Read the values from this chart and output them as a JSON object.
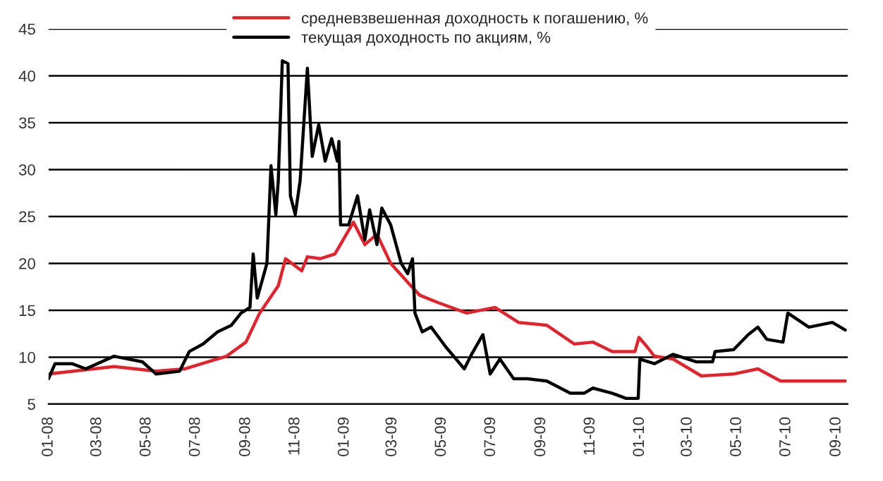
{
  "chart_data": {
    "type": "line",
    "ylim": [
      5,
      45
    ],
    "yticks": [
      5,
      10,
      15,
      20,
      25,
      30,
      35,
      40,
      45
    ],
    "xlim": [
      "2008-01-01",
      "2010-09-15"
    ],
    "xticks": [
      {
        "value": "2008-01-01",
        "label": "01-08"
      },
      {
        "value": "2008-03-01",
        "label": "03-08"
      },
      {
        "value": "2008-05-01",
        "label": "05-08"
      },
      {
        "value": "2008-07-01",
        "label": "07-08"
      },
      {
        "value": "2008-09-01",
        "label": "09-08"
      },
      {
        "value": "2008-11-01",
        "label": "11-08"
      },
      {
        "value": "2009-01-01",
        "label": "01-09"
      },
      {
        "value": "2009-03-01",
        "label": "03-09"
      },
      {
        "value": "2009-05-01",
        "label": "05-09"
      },
      {
        "value": "2009-07-01",
        "label": "07-09"
      },
      {
        "value": "2009-09-01",
        "label": "09-09"
      },
      {
        "value": "2009-11-01",
        "label": "11-09"
      },
      {
        "value": "2010-01-01",
        "label": "01-10"
      },
      {
        "value": "2010-03-01",
        "label": "03-10"
      },
      {
        "value": "2010-05-01",
        "label": "05-10"
      },
      {
        "value": "2010-07-01",
        "label": "07-10"
      },
      {
        "value": "2010-09-01",
        "label": "09-10"
      }
    ],
    "grid": "y",
    "legend": "top left",
    "marker": "none",
    "line_style": "solid",
    "series": [
      {
        "name": "средневзвешенная доходность к погашению, %",
        "color": "#e8202a",
        "x": [
          "2008-01-01",
          "2008-03-22",
          "2008-05-13",
          "2008-06-17",
          "2008-08-08",
          "2008-09-01",
          "2008-09-18",
          "2008-10-11",
          "2008-10-20",
          "2008-11-09",
          "2008-11-16",
          "2008-12-02",
          "2008-12-20",
          "2009-01-12",
          "2009-01-26",
          "2009-02-10",
          "2009-02-27",
          "2009-03-24",
          "2009-04-04",
          "2009-04-27",
          "2009-06-01",
          "2009-07-06",
          "2009-08-04",
          "2009-09-08",
          "2009-10-12",
          "2009-11-04",
          "2009-11-28",
          "2009-12-26",
          "2009-12-31",
          "2010-01-10",
          "2010-01-19",
          "2010-02-11",
          "2010-03-18",
          "2010-04-27",
          "2010-05-27",
          "2010-06-24",
          "2010-07-29",
          "2010-09-12"
        ],
        "values": [
          8.2,
          9,
          8.5,
          8.75,
          10.1,
          11.6,
          14.7,
          17.6,
          20.5,
          19.2,
          20.7,
          20.5,
          21,
          24.4,
          22,
          23.1,
          20,
          17.6,
          16.6,
          15.8,
          14.7,
          15.3,
          13.7,
          13.4,
          11.4,
          11.6,
          10.6,
          10.6,
          12.1,
          11.1,
          10.1,
          9.8,
          8,
          8.2,
          8.75,
          7.45,
          7.45,
          7.45
        ]
      },
      {
        "name": "текущая доходность по акциям, %",
        "color": "#000000",
        "x": [
          "2008-01-01",
          "2008-01-09",
          "2008-01-30",
          "2008-02-16",
          "2008-03-22",
          "2008-04-26",
          "2008-05-13",
          "2008-06-11",
          "2008-06-23",
          "2008-07-10",
          "2008-07-28",
          "2008-08-14",
          "2008-08-26",
          "2008-09-06",
          "2008-09-10",
          "2008-09-15",
          "2008-09-27",
          "2008-10-02",
          "2008-10-08",
          "2008-10-11",
          "2008-10-16",
          "2008-10-23",
          "2008-10-26",
          "2008-11-01",
          "2008-11-07",
          "2008-11-16",
          "2008-11-22",
          "2008-11-30",
          "2008-12-08",
          "2008-12-16",
          "2008-12-23",
          "2008-12-25",
          "2008-12-27",
          "2009-01-06",
          "2009-01-17",
          "2009-01-26",
          "2009-02-01",
          "2009-02-10",
          "2009-02-16",
          "2009-02-27",
          "2009-03-12",
          "2009-03-20",
          "2009-03-26",
          "2009-03-29",
          "2009-04-07",
          "2009-04-18",
          "2009-05-06",
          "2009-05-29",
          "2009-06-07",
          "2009-06-21",
          "2009-06-30",
          "2009-07-12",
          "2009-07-29",
          "2009-08-15",
          "2009-09-08",
          "2009-10-07",
          "2009-10-24",
          "2009-11-04",
          "2009-11-28",
          "2009-12-15",
          "2009-12-30",
          "2010-01-01",
          "2010-01-19",
          "2010-02-11",
          "2010-03-12",
          "2010-04-01",
          "2010-04-04",
          "2010-04-27",
          "2010-05-15",
          "2010-05-27",
          "2010-06-07",
          "2010-06-27",
          "2010-07-03",
          "2010-07-29",
          "2010-08-27",
          "2010-09-12"
        ],
        "values": [
          7.7,
          9.3,
          9.3,
          8.75,
          10.1,
          9.5,
          8.2,
          8.5,
          10.6,
          11.4,
          12.7,
          13.4,
          14.7,
          15.3,
          21,
          16.3,
          20,
          30.4,
          25.2,
          28.8,
          41.6,
          41.3,
          27.2,
          25.2,
          28.8,
          40.8,
          31.4,
          34.8,
          30.9,
          33.3,
          30.9,
          33,
          24.1,
          24.1,
          27.2,
          22.5,
          25.7,
          22,
          25.9,
          24.1,
          20,
          18.9,
          20.5,
          14.7,
          12.7,
          13.2,
          11.1,
          8.75,
          10.3,
          12.4,
          8.2,
          9.8,
          7.7,
          7.7,
          7.45,
          6.15,
          6.15,
          6.7,
          6.15,
          5.6,
          5.6,
          9.8,
          9.3,
          10.3,
          9.5,
          9.5,
          10.6,
          10.8,
          12.4,
          13.2,
          11.9,
          11.6,
          14.7,
          13.2,
          13.7,
          12.9
        ]
      }
    ]
  }
}
